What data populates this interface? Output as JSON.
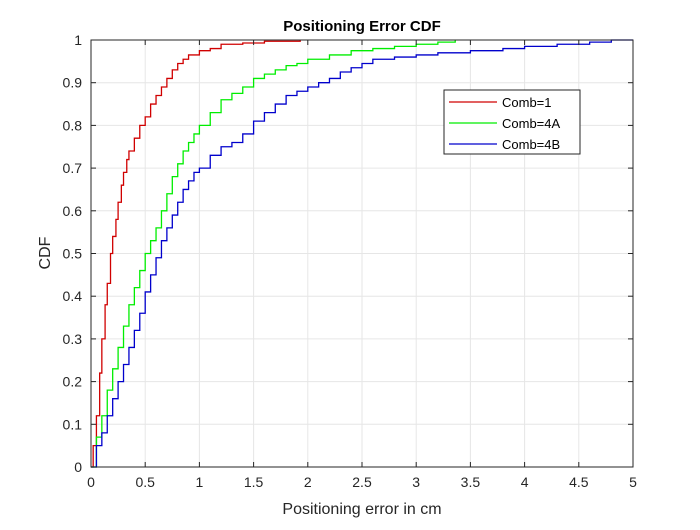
{
  "chart_data": {
    "type": "line",
    "title": "Positioning Error CDF",
    "xlabel": "Positioning error in cm",
    "ylabel": "CDF",
    "xlim": [
      0,
      5
    ],
    "ylim": [
      0,
      1
    ],
    "x_ticks": [
      0,
      0.5,
      1,
      1.5,
      2,
      2.5,
      3,
      3.5,
      4,
      4.5,
      5
    ],
    "y_ticks": [
      0,
      0.1,
      0.2,
      0.3,
      0.4,
      0.5,
      0.6,
      0.7,
      0.8,
      0.9,
      1
    ],
    "x_tick_labels": [
      "0",
      "0.5",
      "1",
      "1.5",
      "2",
      "2.5",
      "3",
      "3.5",
      "4",
      "4.5",
      "5"
    ],
    "y_tick_labels": [
      "0",
      "0.1",
      "0.2",
      "0.3",
      "0.4",
      "0.5",
      "0.6",
      "0.7",
      "0.8",
      "0.9",
      "1"
    ],
    "grid": true,
    "legend_position": "top-right",
    "series": [
      {
        "name": "Comb=1",
        "color": "#d00000",
        "points": [
          [
            0,
            0
          ],
          [
            0.02,
            0.05
          ],
          [
            0.05,
            0.12
          ],
          [
            0.08,
            0.22
          ],
          [
            0.1,
            0.3
          ],
          [
            0.13,
            0.38
          ],
          [
            0.15,
            0.43
          ],
          [
            0.18,
            0.5
          ],
          [
            0.2,
            0.54
          ],
          [
            0.23,
            0.58
          ],
          [
            0.25,
            0.62
          ],
          [
            0.28,
            0.66
          ],
          [
            0.3,
            0.69
          ],
          [
            0.33,
            0.72
          ],
          [
            0.35,
            0.74
          ],
          [
            0.4,
            0.77
          ],
          [
            0.45,
            0.8
          ],
          [
            0.5,
            0.82
          ],
          [
            0.55,
            0.85
          ],
          [
            0.6,
            0.87
          ],
          [
            0.65,
            0.89
          ],
          [
            0.7,
            0.91
          ],
          [
            0.75,
            0.93
          ],
          [
            0.8,
            0.945
          ],
          [
            0.85,
            0.955
          ],
          [
            0.9,
            0.965
          ],
          [
            1.0,
            0.975
          ],
          [
            1.1,
            0.98
          ],
          [
            1.2,
            0.99
          ],
          [
            1.4,
            0.993
          ],
          [
            1.6,
            0.997
          ],
          [
            1.93,
            1.0
          ]
        ]
      },
      {
        "name": "Comb=4A",
        "color": "#00ee00",
        "points": [
          [
            0,
            0
          ],
          [
            0.05,
            0.07
          ],
          [
            0.1,
            0.12
          ],
          [
            0.15,
            0.18
          ],
          [
            0.2,
            0.23
          ],
          [
            0.25,
            0.28
          ],
          [
            0.3,
            0.33
          ],
          [
            0.35,
            0.38
          ],
          [
            0.4,
            0.42
          ],
          [
            0.45,
            0.46
          ],
          [
            0.5,
            0.5
          ],
          [
            0.55,
            0.53
          ],
          [
            0.6,
            0.56
          ],
          [
            0.65,
            0.6
          ],
          [
            0.7,
            0.64
          ],
          [
            0.75,
            0.68
          ],
          [
            0.8,
            0.71
          ],
          [
            0.85,
            0.74
          ],
          [
            0.9,
            0.76
          ],
          [
            0.95,
            0.78
          ],
          [
            1.0,
            0.8
          ],
          [
            1.1,
            0.83
          ],
          [
            1.2,
            0.86
          ],
          [
            1.3,
            0.875
          ],
          [
            1.4,
            0.89
          ],
          [
            1.5,
            0.91
          ],
          [
            1.6,
            0.92
          ],
          [
            1.7,
            0.93
          ],
          [
            1.8,
            0.94
          ],
          [
            1.9,
            0.945
          ],
          [
            2.0,
            0.955
          ],
          [
            2.2,
            0.965
          ],
          [
            2.4,
            0.975
          ],
          [
            2.6,
            0.98
          ],
          [
            2.8,
            0.985
          ],
          [
            3.0,
            0.99
          ],
          [
            3.2,
            0.995
          ],
          [
            3.36,
            1.0
          ]
        ]
      },
      {
        "name": "Comb=4B",
        "color": "#0000cc",
        "points": [
          [
            0,
            0
          ],
          [
            0.05,
            0.05
          ],
          [
            0.1,
            0.08
          ],
          [
            0.15,
            0.12
          ],
          [
            0.2,
            0.16
          ],
          [
            0.25,
            0.2
          ],
          [
            0.3,
            0.24
          ],
          [
            0.35,
            0.28
          ],
          [
            0.4,
            0.32
          ],
          [
            0.45,
            0.36
          ],
          [
            0.5,
            0.41
          ],
          [
            0.55,
            0.45
          ],
          [
            0.6,
            0.49
          ],
          [
            0.65,
            0.53
          ],
          [
            0.7,
            0.56
          ],
          [
            0.75,
            0.59
          ],
          [
            0.8,
            0.62
          ],
          [
            0.85,
            0.65
          ],
          [
            0.9,
            0.67
          ],
          [
            0.95,
            0.69
          ],
          [
            1.0,
            0.7
          ],
          [
            1.1,
            0.73
          ],
          [
            1.2,
            0.75
          ],
          [
            1.3,
            0.76
          ],
          [
            1.4,
            0.78
          ],
          [
            1.5,
            0.81
          ],
          [
            1.6,
            0.83
          ],
          [
            1.7,
            0.85
          ],
          [
            1.8,
            0.87
          ],
          [
            1.9,
            0.88
          ],
          [
            2.0,
            0.89
          ],
          [
            2.1,
            0.9
          ],
          [
            2.2,
            0.91
          ],
          [
            2.3,
            0.925
          ],
          [
            2.4,
            0.935
          ],
          [
            2.5,
            0.945
          ],
          [
            2.6,
            0.955
          ],
          [
            2.8,
            0.96
          ],
          [
            3.0,
            0.965
          ],
          [
            3.2,
            0.97
          ],
          [
            3.5,
            0.975
          ],
          [
            3.8,
            0.98
          ],
          [
            4.0,
            0.985
          ],
          [
            4.3,
            0.99
          ],
          [
            4.6,
            0.995
          ],
          [
            4.8,
            1.0
          ],
          [
            5.0,
            1.0
          ]
        ]
      }
    ]
  },
  "colors": {
    "axis": "#262626",
    "grid": "#e6e6e6",
    "background": "#ffffff"
  }
}
